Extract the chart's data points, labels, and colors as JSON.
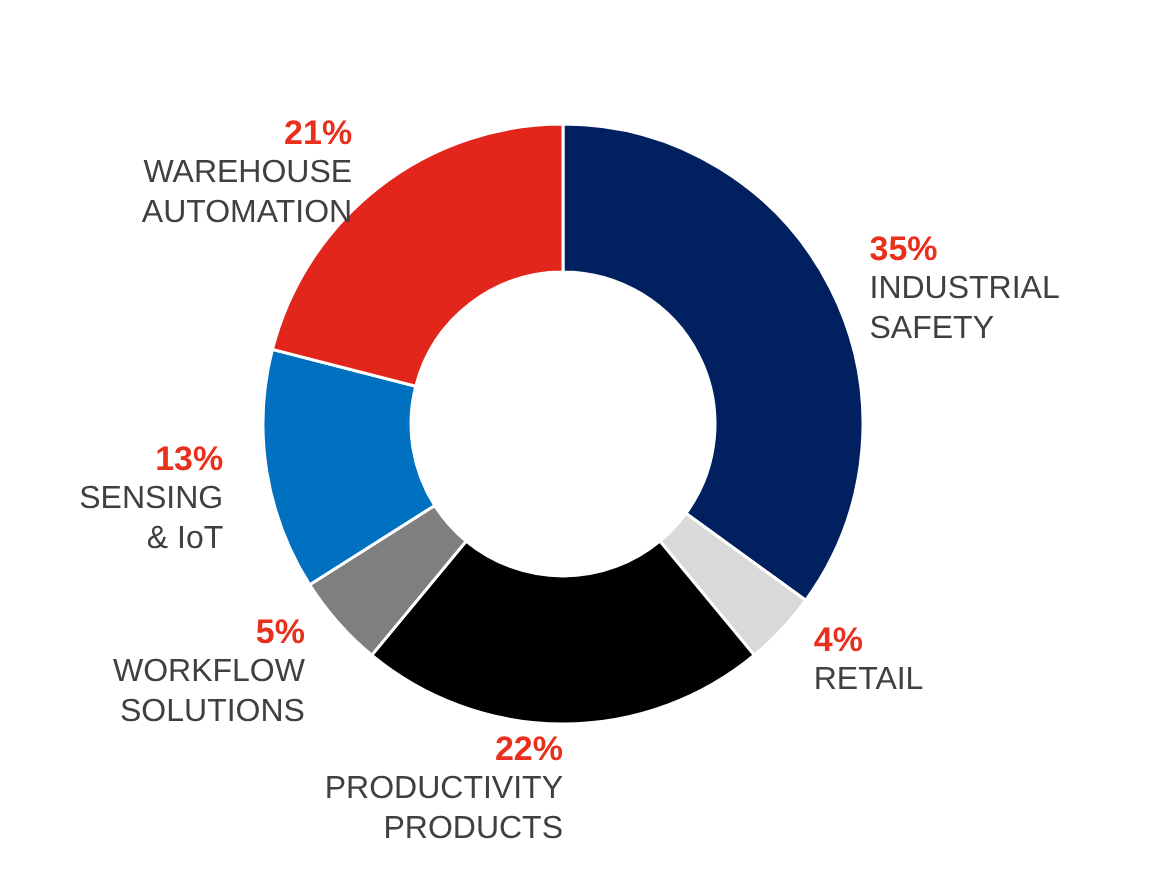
{
  "chart_data": {
    "type": "donut",
    "categories": [
      "INDUSTRIAL SAFETY",
      "RETAIL",
      "PRODUCTIVITY PRODUCTS",
      "WORKFLOW SOLUTIONS",
      "SENSING & IoT",
      "WAREHOUSE AUTOMATION"
    ],
    "values": [
      35,
      4,
      22,
      5,
      13,
      21
    ],
    "colors": [
      "#002060",
      "#d9d9d9",
      "#000000",
      "#7f7f7f",
      "#0070c0",
      "#e2261c"
    ],
    "value_labels": [
      "35%",
      "4%",
      "22%",
      "5%",
      "13%",
      "21%"
    ]
  }
}
